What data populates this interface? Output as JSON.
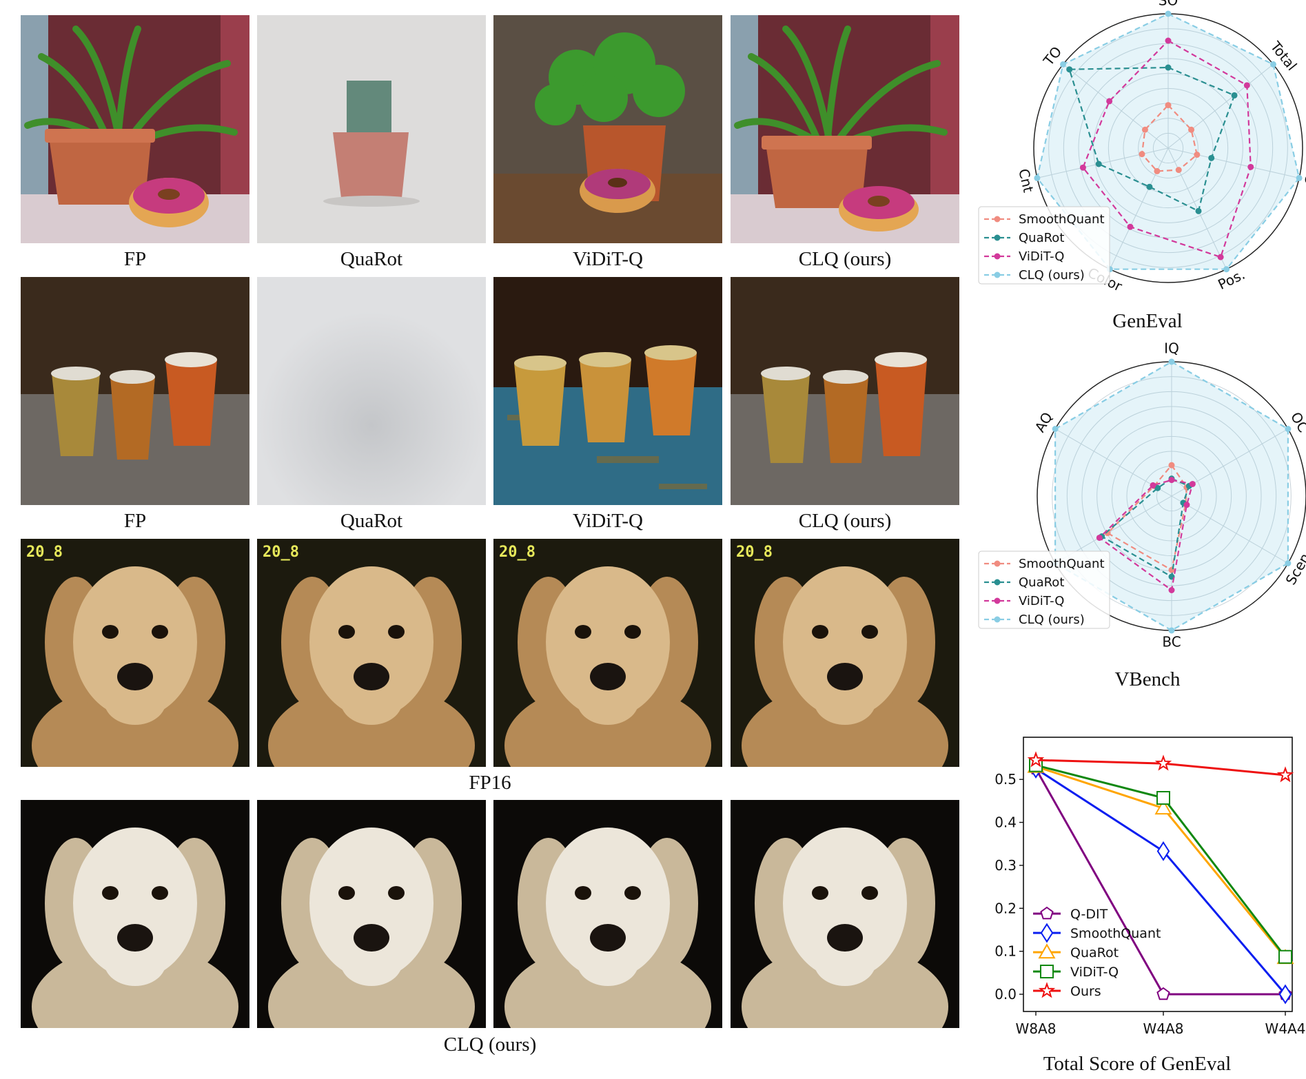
{
  "rows": [
    {
      "captions": [
        "FP",
        "QuaRot",
        "ViDiT-Q",
        "CLQ (ours)"
      ]
    },
    {
      "captions": [
        "FP",
        "QuaRot",
        "ViDiT-Q",
        "CLQ (ours)"
      ]
    },
    {
      "caption": "FP16",
      "overlay_text": "20_8"
    },
    {
      "caption": "CLQ (ours)"
    }
  ],
  "geneval_radar": {
    "caption": "GenEval",
    "axes": [
      "SO",
      "Total",
      "C",
      "Pos.",
      "Color",
      "Cnt",
      "TO"
    ],
    "legend": [
      "SmoothQuant",
      "QuaRot",
      "ViDiT-Q",
      "CLQ (ours)"
    ],
    "colors": [
      "#f08c80",
      "#2a8f91",
      "#d2399b",
      "#89cde4"
    ]
  },
  "vbench_radar": {
    "caption": "VBench",
    "axes": [
      "IQ",
      "OC",
      "Scen",
      "BC",
      "",
      "AQ"
    ],
    "legend": [
      "SmoothQuant",
      "QuaRot",
      "ViDiT-Q",
      "CLQ (ours)"
    ],
    "colors": [
      "#f08c80",
      "#2a8f91",
      "#d2399b",
      "#89cde4"
    ]
  },
  "chart_data": {
    "type": "line",
    "title": "Total Score of GenEval",
    "categories": [
      "W8A8",
      "W4A8",
      "W4A4"
    ],
    "ylim": [
      0,
      0.55
    ],
    "yticks": [
      "0.0",
      "0.1",
      "0.2",
      "0.3",
      "0.4",
      "0.5"
    ],
    "legend_position": "lower-left",
    "series": [
      {
        "name": "Q-DIT",
        "values": [
          0.525,
          0.0,
          0.0
        ],
        "color": "#800080",
        "marker": "pentagon"
      },
      {
        "name": "SmoothQuant",
        "values": [
          0.525,
          0.333,
          0.0
        ],
        "color": "#0a1ef0",
        "marker": "diamond"
      },
      {
        "name": "QuaRot",
        "values": [
          0.53,
          0.433,
          0.085
        ],
        "color": "#ffa500",
        "marker": "triangle"
      },
      {
        "name": "ViDiT-Q",
        "values": [
          0.533,
          0.457,
          0.087
        ],
        "color": "#118811",
        "marker": "square"
      },
      {
        "name": "Ours",
        "values": [
          0.545,
          0.537,
          0.51
        ],
        "color": "#ee1111",
        "marker": "star"
      }
    ]
  }
}
